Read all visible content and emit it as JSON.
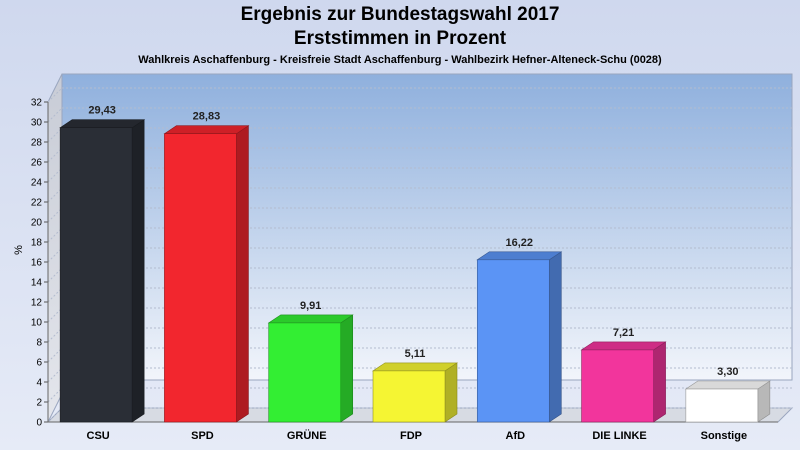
{
  "chart_data": {
    "type": "bar",
    "title": "Ergebnis zur Bundestagswahl 2017",
    "subtitle_line": "Erststimmen in Prozent",
    "subtitle": "Wahlkreis Aschaffenburg - Kreisfreie Stadt Aschaffenburg - Wahlbezirk Hefner-Alteneck-Schu (0028)",
    "ylabel": "%",
    "ylim": [
      0,
      32
    ],
    "yticks": [
      0,
      2,
      4,
      6,
      8,
      10,
      12,
      14,
      16,
      18,
      20,
      22,
      24,
      26,
      28,
      30,
      32
    ],
    "grid": true,
    "categories": [
      "CSU",
      "SPD",
      "GRÜNE",
      "FDP",
      "AfD",
      "DIE LINKE",
      "Sonstige"
    ],
    "values": [
      29.43,
      28.83,
      9.91,
      5.11,
      16.22,
      7.21,
      3.3
    ],
    "value_labels": [
      "29,43",
      "28,83",
      "9,91",
      "5,11",
      "16,22",
      "7,21",
      "3,30"
    ],
    "colors": [
      "#2a2e36",
      "#f2262e",
      "#33ee33",
      "#f5f533",
      "#5b94f5",
      "#f2359c",
      "#ffffff"
    ]
  }
}
